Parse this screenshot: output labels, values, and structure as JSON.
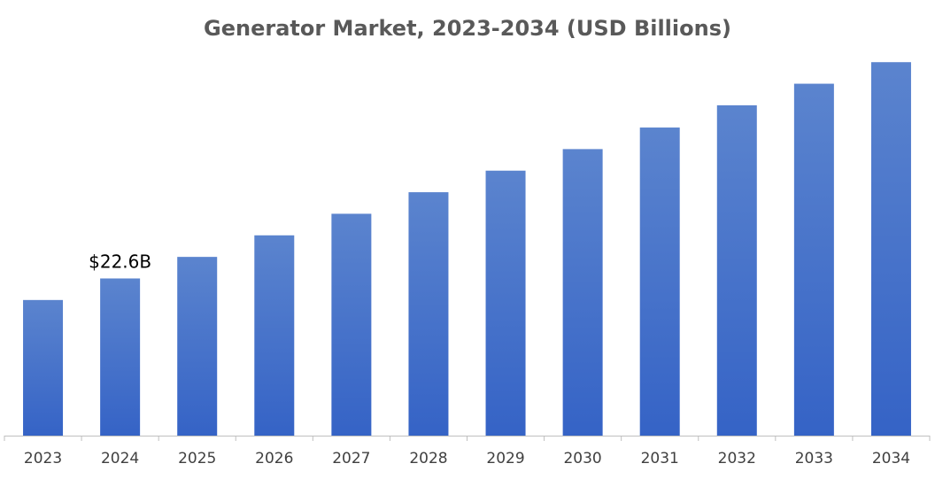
{
  "chart_data": {
    "type": "bar",
    "title": "Generator Market, 2023-2034 (USD Billions)",
    "xlabel": "",
    "ylabel": "",
    "categories": [
      "2023",
      "2024",
      "2025",
      "2026",
      "2027",
      "2028",
      "2029",
      "2030",
      "2031",
      "2032",
      "2033",
      "2034"
    ],
    "values": [
      19.5,
      22.6,
      25.7,
      28.8,
      31.9,
      35.0,
      38.1,
      41.2,
      44.3,
      47.5,
      50.6,
      53.7
    ],
    "data_labels": [
      {
        "category": "2024",
        "text": "$22.6B"
      }
    ],
    "ylim": [
      0,
      55
    ],
    "grid": false,
    "legend": "none",
    "colors": {
      "bar_top": "#5B84CE",
      "bar_bottom": "#3563C6",
      "axis": "#BFBFBF"
    }
  }
}
